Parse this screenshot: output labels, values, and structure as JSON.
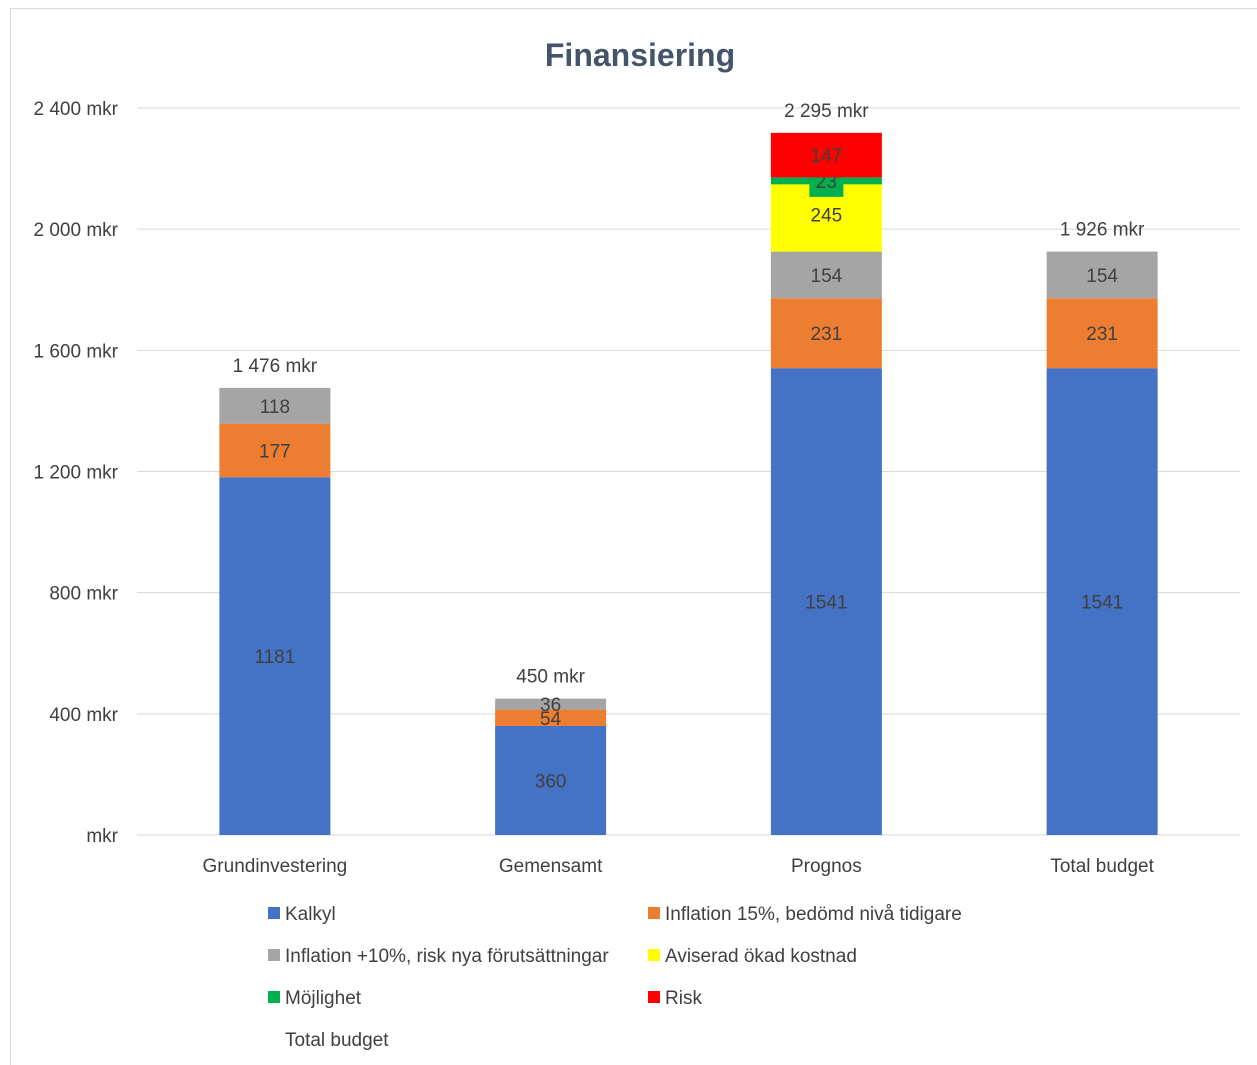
{
  "chart_data": {
    "type": "bar",
    "stacked": true,
    "title": "Finansiering",
    "categories": [
      "Grundinvestering",
      "Gemensamt",
      "Prognos",
      "Total budget"
    ],
    "ylim": [
      0,
      2400
    ],
    "yticks": [
      0,
      400,
      800,
      1200,
      1600,
      2000,
      2400
    ],
    "ytick_labels": [
      "mkr",
      "400 mkr",
      "800 mkr",
      "1 200 mkr",
      "1 600 mkr",
      "2 000 mkr",
      "2 400 mkr"
    ],
    "grid": true,
    "legend_position": "bottom",
    "series": [
      {
        "name": "Kalkyl",
        "color": "#4472c4",
        "values": [
          1181,
          360,
          1541,
          1541
        ]
      },
      {
        "name": "Inflation 15%, bedömd nivå tidigare",
        "color": "#ed7d31",
        "values": [
          177,
          54,
          231,
          231
        ]
      },
      {
        "name": "Inflation +10%, risk nya förutsättningar",
        "color": "#a5a5a5",
        "values": [
          118,
          36,
          154,
          154
        ]
      },
      {
        "name": "Aviserad ökad kostnad",
        "color": "#ffff00",
        "values": [
          null,
          null,
          245,
          null
        ]
      },
      {
        "name": "Möjlighet",
        "color": "#00b050",
        "values": [
          null,
          null,
          -23,
          null
        ]
      },
      {
        "name": "Risk",
        "color": "#ff0000",
        "values": [
          null,
          null,
          147,
          null
        ]
      }
    ],
    "totals_series": {
      "name": "Total budget",
      "labels": [
        "1 476 mkr",
        "450 mkr",
        "2 295 mkr",
        "1 926 mkr"
      ]
    }
  }
}
